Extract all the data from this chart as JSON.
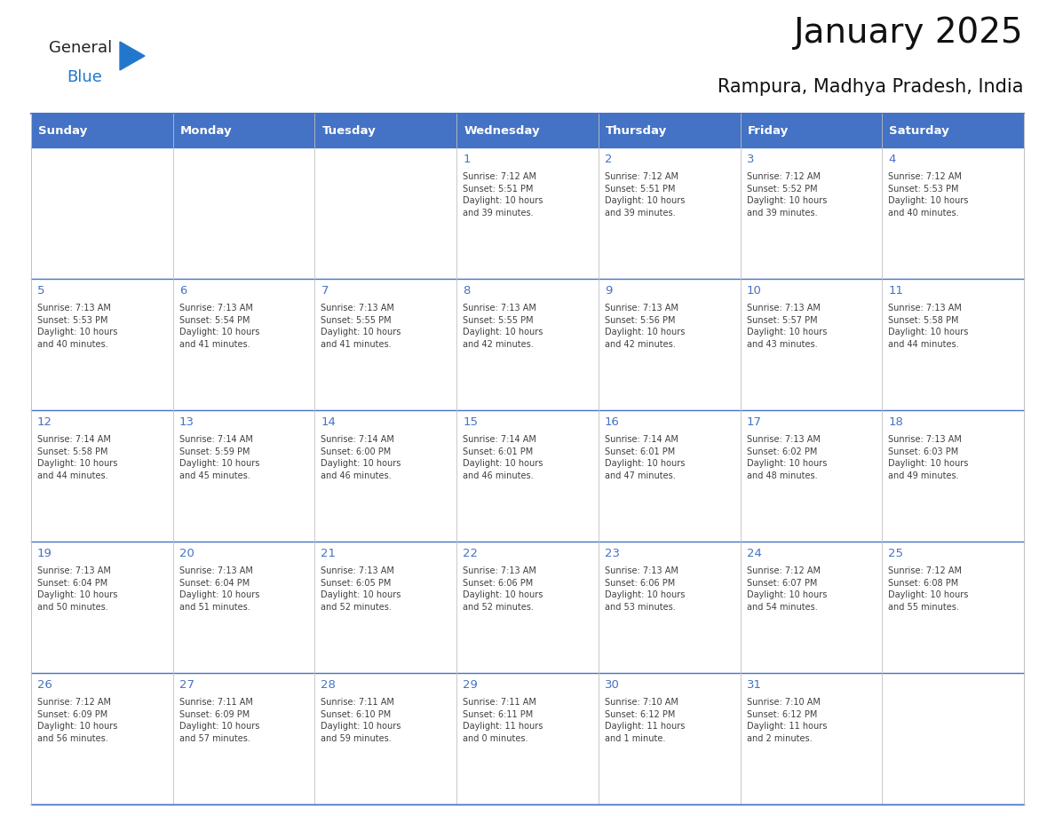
{
  "title": "January 2025",
  "subtitle": "Rampura, Madhya Pradesh, India",
  "days_of_week": [
    "Sunday",
    "Monday",
    "Tuesday",
    "Wednesday",
    "Thursday",
    "Friday",
    "Saturday"
  ],
  "header_bg": "#4472C4",
  "header_text": "#FFFFFF",
  "cell_bg": "#FFFFFF",
  "day_number_color": "#4472C4",
  "text_color": "#404040",
  "line_color": "#4472C4",
  "background_color": "#FFFFFF",
  "logo_general_color": "#222222",
  "logo_blue_color": "#2277CC",
  "logo_triangle_color": "#2277CC",
  "calendar_data": [
    [
      {
        "day": null,
        "info": null
      },
      {
        "day": null,
        "info": null
      },
      {
        "day": null,
        "info": null
      },
      {
        "day": 1,
        "info": "Sunrise: 7:12 AM\nSunset: 5:51 PM\nDaylight: 10 hours\nand 39 minutes."
      },
      {
        "day": 2,
        "info": "Sunrise: 7:12 AM\nSunset: 5:51 PM\nDaylight: 10 hours\nand 39 minutes."
      },
      {
        "day": 3,
        "info": "Sunrise: 7:12 AM\nSunset: 5:52 PM\nDaylight: 10 hours\nand 39 minutes."
      },
      {
        "day": 4,
        "info": "Sunrise: 7:12 AM\nSunset: 5:53 PM\nDaylight: 10 hours\nand 40 minutes."
      }
    ],
    [
      {
        "day": 5,
        "info": "Sunrise: 7:13 AM\nSunset: 5:53 PM\nDaylight: 10 hours\nand 40 minutes."
      },
      {
        "day": 6,
        "info": "Sunrise: 7:13 AM\nSunset: 5:54 PM\nDaylight: 10 hours\nand 41 minutes."
      },
      {
        "day": 7,
        "info": "Sunrise: 7:13 AM\nSunset: 5:55 PM\nDaylight: 10 hours\nand 41 minutes."
      },
      {
        "day": 8,
        "info": "Sunrise: 7:13 AM\nSunset: 5:55 PM\nDaylight: 10 hours\nand 42 minutes."
      },
      {
        "day": 9,
        "info": "Sunrise: 7:13 AM\nSunset: 5:56 PM\nDaylight: 10 hours\nand 42 minutes."
      },
      {
        "day": 10,
        "info": "Sunrise: 7:13 AM\nSunset: 5:57 PM\nDaylight: 10 hours\nand 43 minutes."
      },
      {
        "day": 11,
        "info": "Sunrise: 7:13 AM\nSunset: 5:58 PM\nDaylight: 10 hours\nand 44 minutes."
      }
    ],
    [
      {
        "day": 12,
        "info": "Sunrise: 7:14 AM\nSunset: 5:58 PM\nDaylight: 10 hours\nand 44 minutes."
      },
      {
        "day": 13,
        "info": "Sunrise: 7:14 AM\nSunset: 5:59 PM\nDaylight: 10 hours\nand 45 minutes."
      },
      {
        "day": 14,
        "info": "Sunrise: 7:14 AM\nSunset: 6:00 PM\nDaylight: 10 hours\nand 46 minutes."
      },
      {
        "day": 15,
        "info": "Sunrise: 7:14 AM\nSunset: 6:01 PM\nDaylight: 10 hours\nand 46 minutes."
      },
      {
        "day": 16,
        "info": "Sunrise: 7:14 AM\nSunset: 6:01 PM\nDaylight: 10 hours\nand 47 minutes."
      },
      {
        "day": 17,
        "info": "Sunrise: 7:13 AM\nSunset: 6:02 PM\nDaylight: 10 hours\nand 48 minutes."
      },
      {
        "day": 18,
        "info": "Sunrise: 7:13 AM\nSunset: 6:03 PM\nDaylight: 10 hours\nand 49 minutes."
      }
    ],
    [
      {
        "day": 19,
        "info": "Sunrise: 7:13 AM\nSunset: 6:04 PM\nDaylight: 10 hours\nand 50 minutes."
      },
      {
        "day": 20,
        "info": "Sunrise: 7:13 AM\nSunset: 6:04 PM\nDaylight: 10 hours\nand 51 minutes."
      },
      {
        "day": 21,
        "info": "Sunrise: 7:13 AM\nSunset: 6:05 PM\nDaylight: 10 hours\nand 52 minutes."
      },
      {
        "day": 22,
        "info": "Sunrise: 7:13 AM\nSunset: 6:06 PM\nDaylight: 10 hours\nand 52 minutes."
      },
      {
        "day": 23,
        "info": "Sunrise: 7:13 AM\nSunset: 6:06 PM\nDaylight: 10 hours\nand 53 minutes."
      },
      {
        "day": 24,
        "info": "Sunrise: 7:12 AM\nSunset: 6:07 PM\nDaylight: 10 hours\nand 54 minutes."
      },
      {
        "day": 25,
        "info": "Sunrise: 7:12 AM\nSunset: 6:08 PM\nDaylight: 10 hours\nand 55 minutes."
      }
    ],
    [
      {
        "day": 26,
        "info": "Sunrise: 7:12 AM\nSunset: 6:09 PM\nDaylight: 10 hours\nand 56 minutes."
      },
      {
        "day": 27,
        "info": "Sunrise: 7:11 AM\nSunset: 6:09 PM\nDaylight: 10 hours\nand 57 minutes."
      },
      {
        "day": 28,
        "info": "Sunrise: 7:11 AM\nSunset: 6:10 PM\nDaylight: 10 hours\nand 59 minutes."
      },
      {
        "day": 29,
        "info": "Sunrise: 7:11 AM\nSunset: 6:11 PM\nDaylight: 11 hours\nand 0 minutes."
      },
      {
        "day": 30,
        "info": "Sunrise: 7:10 AM\nSunset: 6:12 PM\nDaylight: 11 hours\nand 1 minute."
      },
      {
        "day": 31,
        "info": "Sunrise: 7:10 AM\nSunset: 6:12 PM\nDaylight: 11 hours\nand 2 minutes."
      },
      {
        "day": null,
        "info": null
      }
    ]
  ]
}
